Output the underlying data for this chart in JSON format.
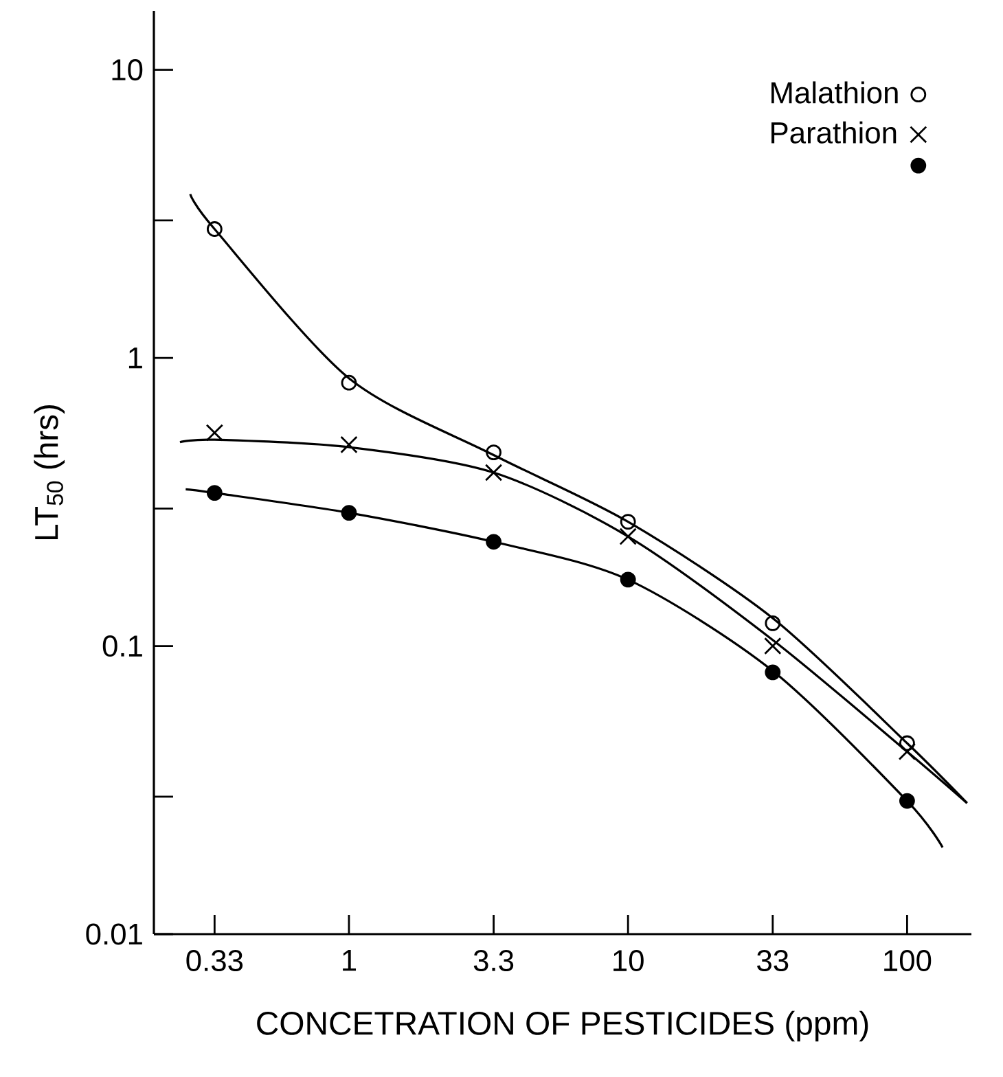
{
  "chart_data": {
    "type": "scatter",
    "xlabel": "CONCETRATION OF PESTICIDES (ppm)",
    "ylabel": "LT$_{50}$ (hrs)",
    "log": "xy",
    "legend": "top right",
    "grid": false,
    "xlim": [
      0.2,
      170
    ],
    "xticks": [
      0.33,
      1,
      3.3,
      10,
      33,
      100
    ],
    "ylim": [
      0.01,
      16
    ],
    "yticks": [
      0.01,
      {
        "value": 0.03,
        "label": null
      },
      0.1,
      {
        "value": 0.3,
        "label": null
      },
      1,
      {
        "value": 3,
        "label": null
      },
      10
    ],
    "series": [
      {
        "name": "Malathion",
        "marker": "circle",
        "color": "#000000",
        "x": [
          0.33,
          1,
          3.3,
          10,
          33,
          100
        ],
        "values": [
          2.8,
          0.82,
          0.47,
          0.27,
          0.12,
          0.046
        ]
      },
      {
        "name": "Parathion",
        "marker": "cross",
        "color": "#000000",
        "x": [
          0.33,
          1,
          3.3,
          10,
          33,
          100
        ],
        "values": [
          0.55,
          0.5,
          0.4,
          0.24,
          0.1,
          0.043
        ]
      },
      {
        "marker": "circle",
        "color": "#000000",
        "x": [
          0.33,
          1,
          3.3,
          10,
          33,
          100
        ],
        "values": [
          0.34,
          0.29,
          0.23,
          0.17,
          0.081,
          0.029
        ]
      },
      {
        "type": "line",
        "marker": "none",
        "color": "#000000",
        "x": [
          0.27,
          0.33,
          1,
          3.3,
          10,
          33,
          100,
          164
        ],
        "values": [
          3.7,
          2.8,
          0.85,
          0.46,
          0.27,
          0.125,
          0.046,
          0.0285
        ]
      },
      {
        "type": "line",
        "marker": "none",
        "color": "#000000",
        "x": [
          0.248,
          0.33,
          1,
          3.3,
          10,
          33,
          100,
          164
        ],
        "values": [
          0.51,
          0.52,
          0.49,
          0.4,
          0.24,
          0.105,
          0.043,
          0.0285
        ]
      },
      {
        "type": "line",
        "marker": "none",
        "color": "#000000",
        "x": [
          0.26,
          0.33,
          1,
          3.3,
          10,
          33,
          100,
          134
        ],
        "values": [
          0.35,
          0.34,
          0.29,
          0.23,
          0.17,
          0.082,
          0.029,
          0.02
        ]
      }
    ]
  }
}
